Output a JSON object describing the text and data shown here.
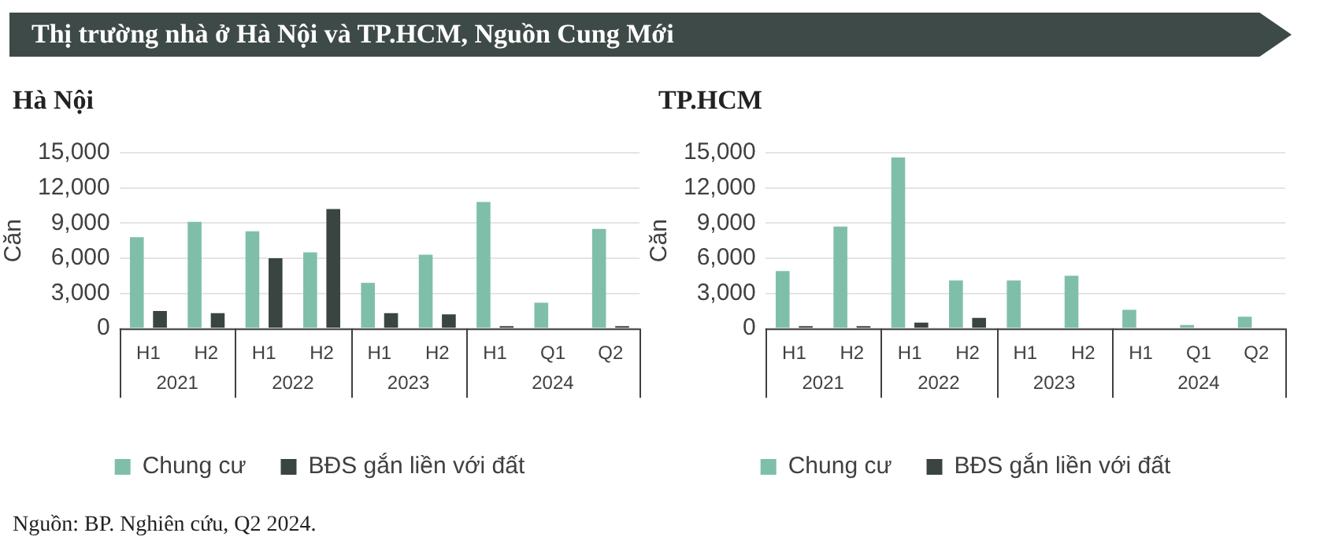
{
  "chart_data": [
    {
      "type": "bar",
      "title": "Hà Nội",
      "ylabel": "Căn",
      "categories": [
        "H1",
        "H2",
        "H1",
        "H2",
        "H1",
        "H2",
        "H1",
        "Q1",
        "Q2"
      ],
      "series": [
        {
          "name": "Chung cư",
          "color": "#7fbfaa",
          "values": [
            7800,
            9100,
            8300,
            6500,
            3900,
            6300,
            10800,
            2200,
            8500
          ]
        },
        {
          "name": "BĐS gắn liền với đất",
          "color": "#3a4542",
          "values": [
            1500,
            1300,
            6000,
            10200,
            1300,
            1200,
            200,
            0,
            200
          ]
        }
      ],
      "ylim": [
        0,
        15000
      ],
      "yticks": [
        {
          "value": 0,
          "label": "0"
        },
        {
          "value": 3000,
          "label": "3,000"
        },
        {
          "value": 6000,
          "label": "6,000"
        },
        {
          "value": 9000,
          "label": "9,000"
        },
        {
          "value": 12000,
          "label": "12,000"
        },
        {
          "value": 15000,
          "label": "15,000"
        }
      ],
      "grid": "y",
      "legend": "bottom",
      "annotations": [
        "2021",
        "2022",
        "2023",
        "2024",
        "Thị trường nhà ở Hà Nội và TP.HCM, Nguồn Cung Mới"
      ]
    },
    {
      "type": "bar",
      "title": "TP.HCM",
      "ylabel": "Căn",
      "categories": [
        "H1",
        "H2",
        "H1",
        "H2",
        "H1",
        "H2",
        "H1",
        "Q1",
        "Q2"
      ],
      "series": [
        {
          "name": "Chung cư",
          "color": "#7fbfaa",
          "values": [
            4900,
            8700,
            14600,
            4100,
            4100,
            4500,
            1600,
            300,
            1000
          ]
        },
        {
          "name": "BĐS gắn liền với đất",
          "color": "#3a4542",
          "values": [
            200,
            200,
            500,
            900,
            0,
            0,
            0,
            0,
            0
          ]
        }
      ],
      "ylim": [
        0,
        15000
      ],
      "yticks": [
        {
          "value": 0,
          "label": "0"
        },
        {
          "value": 3000,
          "label": "3,000"
        },
        {
          "value": 6000,
          "label": "6,000"
        },
        {
          "value": 9000,
          "label": "9,000"
        },
        {
          "value": 12000,
          "label": "12,000"
        },
        {
          "value": 15000,
          "label": "15,000"
        }
      ],
      "grid": "y",
      "legend": "bottom",
      "annotations": [
        "2021",
        "2022",
        "2023",
        "2024",
        "Nguồn: BP. Nghiên cứu, Q2 2024."
      ]
    }
  ]
}
